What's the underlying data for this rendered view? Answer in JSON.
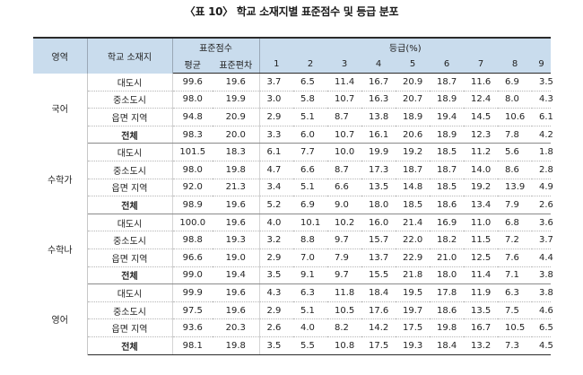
{
  "title": "〈표 10〉 학교 소재지별 표준점수 및 등급 분포",
  "headers": {
    "subject": "영역",
    "location": "학교 소재지",
    "std_score": "표준점수",
    "grade": "등급(%)",
    "mean": "평균",
    "sd": "표준편차",
    "grades": [
      "1",
      "2",
      "3",
      "4",
      "5",
      "6",
      "7",
      "8",
      "9"
    ]
  },
  "groups": [
    {
      "subject": "국어",
      "rows": [
        {
          "loc": "대도시",
          "mean": "99.6",
          "sd": "19.6",
          "g": [
            "3.7",
            "6.5",
            "11.4",
            "16.7",
            "20.9",
            "18.7",
            "11.6",
            "6.9",
            "3.5"
          ]
        },
        {
          "loc": "중소도시",
          "mean": "98.0",
          "sd": "19.9",
          "g": [
            "3.0",
            "5.8",
            "10.7",
            "16.3",
            "20.7",
            "18.9",
            "12.4",
            "8.0",
            "4.3"
          ]
        },
        {
          "loc": "읍면 지역",
          "mean": "94.8",
          "sd": "20.9",
          "g": [
            "2.9",
            "5.1",
            "8.7",
            "13.8",
            "18.9",
            "19.4",
            "14.5",
            "10.6",
            "6.1"
          ]
        },
        {
          "loc": "전체",
          "mean": "98.3",
          "sd": "20.0",
          "g": [
            "3.3",
            "6.0",
            "10.7",
            "16.1",
            "20.6",
            "18.9",
            "12.3",
            "7.8",
            "4.2"
          ]
        }
      ]
    },
    {
      "subject": "수학가",
      "rows": [
        {
          "loc": "대도시",
          "mean": "101.5",
          "sd": "18.3",
          "g": [
            "6.1",
            "7.7",
            "10.0",
            "19.9",
            "19.2",
            "18.5",
            "11.2",
            "5.6",
            "1.8"
          ]
        },
        {
          "loc": "중소도시",
          "mean": "98.0",
          "sd": "19.8",
          "g": [
            "4.7",
            "6.6",
            "8.7",
            "17.3",
            "18.7",
            "18.7",
            "14.0",
            "8.6",
            "2.8"
          ]
        },
        {
          "loc": "읍면 지역",
          "mean": "92.0",
          "sd": "21.3",
          "g": [
            "3.4",
            "5.1",
            "6.6",
            "13.5",
            "14.8",
            "18.5",
            "19.2",
            "13.9",
            "4.9"
          ]
        },
        {
          "loc": "전체",
          "mean": "98.9",
          "sd": "19.6",
          "g": [
            "5.2",
            "6.9",
            "9.0",
            "18.0",
            "18.5",
            "18.6",
            "13.4",
            "7.9",
            "2.6"
          ]
        }
      ]
    },
    {
      "subject": "수학나",
      "rows": [
        {
          "loc": "대도시",
          "mean": "100.0",
          "sd": "19.6",
          "g": [
            "4.0",
            "10.1",
            "10.2",
            "16.0",
            "21.4",
            "16.9",
            "11.0",
            "6.8",
            "3.6"
          ]
        },
        {
          "loc": "중소도시",
          "mean": "98.8",
          "sd": "19.3",
          "g": [
            "3.2",
            "8.8",
            "9.7",
            "15.7",
            "22.0",
            "18.2",
            "11.5",
            "7.2",
            "3.7"
          ]
        },
        {
          "loc": "읍면 지역",
          "mean": "96.6",
          "sd": "19.0",
          "g": [
            "2.9",
            "7.0",
            "7.9",
            "13.7",
            "22.9",
            "21.0",
            "12.5",
            "7.6",
            "4.4"
          ]
        },
        {
          "loc": "전체",
          "mean": "99.0",
          "sd": "19.4",
          "g": [
            "3.5",
            "9.1",
            "9.7",
            "15.5",
            "21.8",
            "18.0",
            "11.4",
            "7.1",
            "3.8"
          ]
        }
      ]
    },
    {
      "subject": "영어",
      "rows": [
        {
          "loc": "대도시",
          "mean": "99.9",
          "sd": "19.6",
          "g": [
            "4.3",
            "6.3",
            "11.8",
            "18.4",
            "19.5",
            "17.8",
            "11.9",
            "6.3",
            "3.8"
          ]
        },
        {
          "loc": "중소도시",
          "mean": "97.5",
          "sd": "19.6",
          "g": [
            "2.9",
            "5.1",
            "10.5",
            "17.6",
            "19.7",
            "18.6",
            "13.5",
            "7.5",
            "4.6"
          ]
        },
        {
          "loc": "읍면 지역",
          "mean": "93.6",
          "sd": "20.3",
          "g": [
            "2.6",
            "4.0",
            "8.2",
            "14.2",
            "17.5",
            "19.8",
            "16.7",
            "10.5",
            "6.5"
          ]
        },
        {
          "loc": "전체",
          "mean": "98.1",
          "sd": "19.8",
          "g": [
            "3.5",
            "5.5",
            "10.8",
            "17.5",
            "19.3",
            "18.4",
            "13.2",
            "7.3",
            "4.5"
          ]
        }
      ]
    }
  ]
}
